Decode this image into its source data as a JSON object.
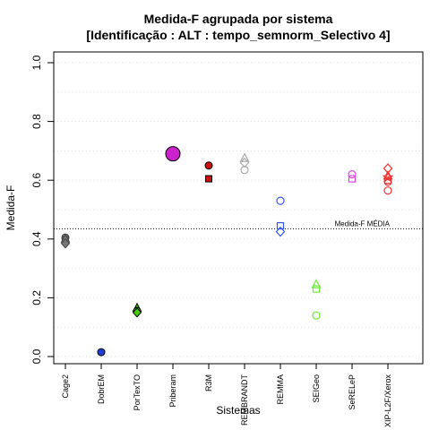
{
  "chart_data": {
    "type": "scatter",
    "title": "Medida-F agrupada por sistema",
    "subtitle": "[Identificação : ALT : tempo_semnorm_Selectivo 4]",
    "xlabel": "Sistemas",
    "ylabel": "Medida-F",
    "ylim": [
      0,
      1
    ],
    "yticks": [
      0.0,
      0.2,
      0.4,
      0.6,
      0.8,
      1.0
    ],
    "ytick_labels": [
      "0.0",
      "0.2",
      "0.4",
      "0.6",
      "0.8",
      "1.0"
    ],
    "grid": "horizontal dotted",
    "categories": [
      "Cage2",
      "DobrEM",
      "PorTexTO",
      "Priberam",
      "R3M",
      "REMBRANDT",
      "REMMA",
      "SEIGeo",
      "SeRELeP",
      "XIP-L2F/Xerox"
    ],
    "reference_line": {
      "value": 0.435,
      "label": "Medida-F MÉDIA"
    },
    "points": [
      {
        "category": "Cage2",
        "value": 0.405,
        "marker": "circle",
        "color": "#777777",
        "filled": true
      },
      {
        "category": "Cage2",
        "value": 0.398,
        "marker": "square",
        "color": "#777777",
        "filled": true
      },
      {
        "category": "Cage2",
        "value": 0.4,
        "marker": "triangle",
        "color": "#777777",
        "filled": true
      },
      {
        "category": "Cage2",
        "value": 0.385,
        "marker": "diamond",
        "color": "#777777",
        "filled": true
      },
      {
        "category": "DobrEM",
        "value": 0.015,
        "marker": "circle",
        "color": "#1f3fd6",
        "filled": true
      },
      {
        "category": "PorTexTO",
        "value": 0.165,
        "marker": "triangle",
        "color": "#44cc00",
        "filled": true
      },
      {
        "category": "PorTexTO",
        "value": 0.155,
        "marker": "circle",
        "color": "#44cc00",
        "filled": true
      },
      {
        "category": "PorTexTO",
        "value": 0.15,
        "marker": "diamond",
        "color": "#44cc00",
        "filled": true
      },
      {
        "category": "Priberam",
        "value": 0.69,
        "marker": "circle-large",
        "color": "#cc22cc",
        "filled": true
      },
      {
        "category": "R3M",
        "value": 0.65,
        "marker": "circle",
        "color": "#cc1111",
        "filled": true
      },
      {
        "category": "R3M",
        "value": 0.605,
        "marker": "square",
        "color": "#cc1111",
        "filled": true
      },
      {
        "category": "REMBRANDT",
        "value": 0.675,
        "marker": "triangle",
        "color": "#aaaaaa",
        "filled": false
      },
      {
        "category": "REMBRANDT",
        "value": 0.66,
        "marker": "diamond",
        "color": "#aaaaaa",
        "filled": false
      },
      {
        "category": "REMBRANDT",
        "value": 0.635,
        "marker": "circle",
        "color": "#aaaaaa",
        "filled": false
      },
      {
        "category": "REMMA",
        "value": 0.53,
        "marker": "circle",
        "color": "#3355ee",
        "filled": false
      },
      {
        "category": "REMMA",
        "value": 0.445,
        "marker": "square",
        "color": "#3355ee",
        "filled": false
      },
      {
        "category": "REMMA",
        "value": 0.425,
        "marker": "diamond",
        "color": "#3355ee",
        "filled": false
      },
      {
        "category": "SEIGeo",
        "value": 0.245,
        "marker": "triangle",
        "color": "#66ee33",
        "filled": false
      },
      {
        "category": "SEIGeo",
        "value": 0.23,
        "marker": "square",
        "color": "#66ee33",
        "filled": false
      },
      {
        "category": "SEIGeo",
        "value": 0.14,
        "marker": "circle",
        "color": "#66ee33",
        "filled": false
      },
      {
        "category": "SeRELeP",
        "value": 0.62,
        "marker": "circle",
        "color": "#dd44dd",
        "filled": false
      },
      {
        "category": "SeRELeP",
        "value": 0.605,
        "marker": "square",
        "color": "#dd44dd",
        "filled": false
      },
      {
        "category": "XIP-L2F/Xerox",
        "value": 0.64,
        "marker": "diamond",
        "color": "#ee3333",
        "filled": false
      },
      {
        "category": "XIP-L2F/Xerox",
        "value": 0.615,
        "marker": "triangle",
        "color": "#ee3333",
        "filled": false
      },
      {
        "category": "XIP-L2F/Xerox",
        "value": 0.61,
        "marker": "star",
        "color": "#ee3333",
        "filled": false
      },
      {
        "category": "XIP-L2F/Xerox",
        "value": 0.6,
        "marker": "square",
        "color": "#ee3333",
        "filled": false
      },
      {
        "category": "XIP-L2F/Xerox",
        "value": 0.595,
        "marker": "circle",
        "color": "#ee3333",
        "filled": false
      },
      {
        "category": "XIP-L2F/Xerox",
        "value": 0.565,
        "marker": "circle",
        "color": "#ee3333",
        "filled": false
      }
    ]
  }
}
